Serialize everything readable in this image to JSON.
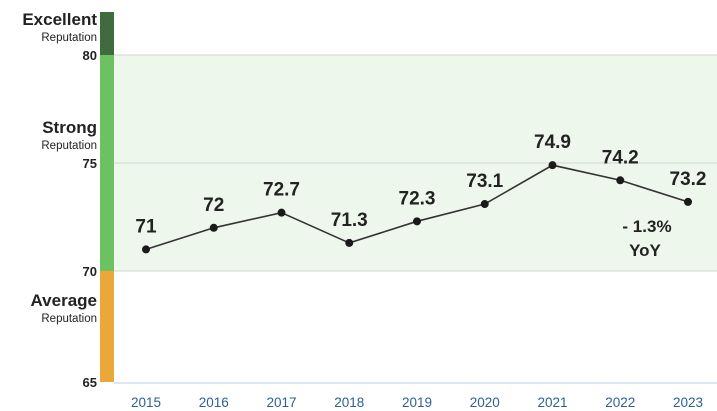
{
  "chart_data": {
    "type": "line",
    "x": [
      "2015",
      "2016",
      "2017",
      "2018",
      "2019",
      "2020",
      "2021",
      "2022",
      "2023"
    ],
    "values": [
      71,
      72,
      72.7,
      71.3,
      72.3,
      73.1,
      74.9,
      74.2,
      73.2
    ],
    "ylim": [
      65,
      82
    ],
    "yticks": [
      "65",
      "70",
      "75",
      "80"
    ],
    "grid": true,
    "bands": [
      {
        "label": "Excellent",
        "sub": "Reputation",
        "from": 80,
        "to": 82,
        "color": "#3f6b3f"
      },
      {
        "label": "Strong",
        "sub": "Reputation",
        "from": 70,
        "to": 80,
        "color": "#6cc160",
        "fill": "#eef7ec"
      },
      {
        "label": "Average",
        "sub": "Reputation",
        "from": 65,
        "to": 70,
        "color": "#eaa83a"
      }
    ],
    "annotation": {
      "line1": "- 1.3%",
      "line2": "YoY"
    },
    "colors": {
      "line": "#333333",
      "point": "#1a1a1a",
      "axis_label": "#2e6096",
      "label": "#222222"
    }
  }
}
